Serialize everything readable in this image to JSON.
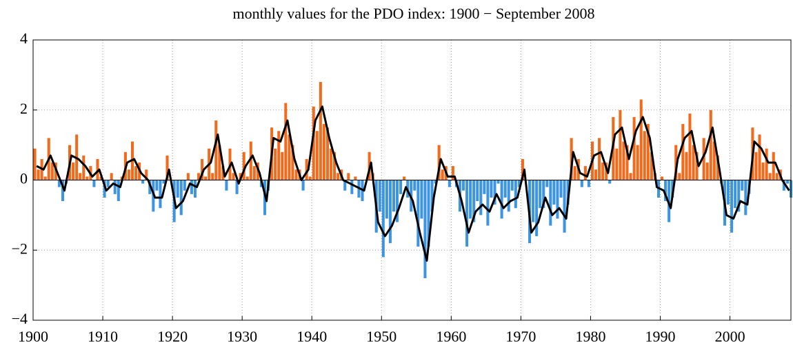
{
  "chart_data": {
    "type": "bar-line",
    "title": "monthly values for the PDO index: 1900 − September 2008",
    "xlim": [
      1900,
      2008.75
    ],
    "ylim": [
      -4,
      4
    ],
    "xticks": [
      1900,
      1910,
      1920,
      1930,
      1940,
      1950,
      1960,
      1970,
      1980,
      1990,
      2000
    ],
    "yticks": [
      {
        "value": -4,
        "label": "−4"
      },
      {
        "value": -2,
        "label": "−2"
      },
      0,
      2,
      4
    ],
    "grid": true,
    "series": [
      {
        "type": "bar",
        "color_positive": "#f26a1b",
        "color_negative": "#3d94e0",
        "x": [
          1900.25,
          1900.75,
          1901.25,
          1901.75,
          1902.25,
          1902.75,
          1903.25,
          1903.75,
          1904.25,
          1904.75,
          1905.25,
          1905.75,
          1906.25,
          1906.75,
          1907.25,
          1907.75,
          1908.25,
          1908.75,
          1909.25,
          1909.75,
          1910.25,
          1910.75,
          1911.25,
          1911.75,
          1912.25,
          1912.75,
          1913.25,
          1913.75,
          1914.25,
          1914.75,
          1915.25,
          1915.75,
          1916.25,
          1916.75,
          1917.25,
          1917.75,
          1918.25,
          1918.75,
          1919.25,
          1919.75,
          1920.25,
          1920.75,
          1921.25,
          1921.75,
          1922.25,
          1922.75,
          1923.25,
          1923.75,
          1924.25,
          1924.75,
          1925.25,
          1925.75,
          1926.25,
          1926.75,
          1927.25,
          1927.75,
          1928.25,
          1928.75,
          1929.25,
          1929.75,
          1930.25,
          1930.75,
          1931.25,
          1931.75,
          1932.25,
          1932.75,
          1933.25,
          1933.75,
          1934.25,
          1934.75,
          1935.25,
          1935.75,
          1936.25,
          1936.75,
          1937.25,
          1937.75,
          1938.25,
          1938.75,
          1939.25,
          1939.75,
          1940.25,
          1940.75,
          1941.25,
          1941.75,
          1942.25,
          1942.75,
          1943.25,
          1943.75,
          1944.25,
          1944.75,
          1945.25,
          1945.75,
          1946.25,
          1946.75,
          1947.25,
          1947.75,
          1948.25,
          1948.75,
          1949.25,
          1949.75,
          1950.25,
          1950.75,
          1951.25,
          1951.75,
          1952.25,
          1952.75,
          1953.25,
          1953.75,
          1954.25,
          1954.75,
          1955.25,
          1955.75,
          1956.25,
          1956.75,
          1957.25,
          1957.75,
          1958.25,
          1958.75,
          1959.25,
          1959.75,
          1960.25,
          1960.75,
          1961.25,
          1961.75,
          1962.25,
          1962.75,
          1963.25,
          1963.75,
          1964.25,
          1964.75,
          1965.25,
          1965.75,
          1966.25,
          1966.75,
          1967.25,
          1967.75,
          1968.25,
          1968.75,
          1969.25,
          1969.75,
          1970.25,
          1970.75,
          1971.25,
          1971.75,
          1972.25,
          1972.75,
          1973.25,
          1973.75,
          1974.25,
          1974.75,
          1975.25,
          1975.75,
          1976.25,
          1976.75,
          1977.25,
          1977.75,
          1978.25,
          1978.75,
          1979.25,
          1979.75,
          1980.25,
          1980.75,
          1981.25,
          1981.75,
          1982.25,
          1982.75,
          1983.25,
          1983.75,
          1984.25,
          1984.75,
          1985.25,
          1985.75,
          1986.25,
          1986.75,
          1987.25,
          1987.75,
          1988.25,
          1988.75,
          1989.25,
          1989.75,
          1990.25,
          1990.75,
          1991.25,
          1991.75,
          1992.25,
          1992.75,
          1993.25,
          1993.75,
          1994.25,
          1994.75,
          1995.25,
          1995.75,
          1996.25,
          1996.75,
          1997.25,
          1997.75,
          1998.25,
          1998.75,
          1999.25,
          1999.75,
          2000.25,
          2000.75,
          2001.25,
          2001.75,
          2002.25,
          2002.75,
          2003.25,
          2003.75,
          2004.25,
          2004.75,
          2005.25,
          2005.75,
          2006.25,
          2006.75,
          2007.25,
          2007.75,
          2008.25,
          2008.75
        ],
        "values": [
          0.9,
          0.3,
          0.6,
          0.1,
          1.2,
          0.5,
          0.5,
          -0.2,
          -0.6,
          -0.1,
          1.0,
          0.5,
          1.3,
          0.2,
          0.7,
          0.1,
          0.4,
          -0.2,
          0.6,
          0.1,
          -0.5,
          -0.2,
          0.2,
          -0.4,
          -0.6,
          0.1,
          0.8,
          0.3,
          1.1,
          0.4,
          0.5,
          -0.1,
          0.3,
          -0.4,
          -0.9,
          -0.3,
          -0.8,
          -0.1,
          0.7,
          0.0,
          -1.2,
          -0.5,
          -1.0,
          -0.3,
          0.2,
          -0.4,
          -0.5,
          0.2,
          0.6,
          0.1,
          0.9,
          0.2,
          1.7,
          1.0,
          0.4,
          -0.3,
          0.9,
          0.2,
          -0.4,
          0.2,
          0.8,
          0.1,
          1.1,
          0.4,
          0.5,
          -0.2,
          -1.0,
          -0.3,
          1.5,
          0.9,
          1.4,
          0.8,
          2.2,
          1.3,
          1.0,
          0.3,
          0.3,
          -0.3,
          0.6,
          0.1,
          2.1,
          1.4,
          2.8,
          1.6,
          1.5,
          0.9,
          0.8,
          0.2,
          0.3,
          -0.3,
          0.2,
          -0.4,
          0.1,
          -0.5,
          -0.6,
          0.0,
          0.8,
          0.2,
          -1.5,
          -0.9,
          -2.2,
          -1.1,
          -1.8,
          -0.9,
          -1.2,
          -0.4,
          0.1,
          -0.5,
          -0.9,
          -0.3,
          -1.9,
          -1.1,
          -2.8,
          -1.9,
          -0.9,
          -0.1,
          1.0,
          0.3,
          0.4,
          -0.2,
          0.4,
          -0.2,
          -0.9,
          -0.3,
          -1.9,
          -1.1,
          -1.2,
          -0.6,
          -1.0,
          -0.4,
          -1.3,
          -0.5,
          -0.7,
          -0.1,
          -1.1,
          -0.5,
          -0.9,
          -0.3,
          -0.8,
          -0.2,
          0.6,
          0.0,
          -1.8,
          -1.2,
          -1.6,
          -0.8,
          -0.8,
          -0.2,
          -1.3,
          -0.7,
          -1.1,
          -0.5,
          -1.5,
          -0.7,
          1.2,
          0.4,
          0.6,
          -0.2,
          0.4,
          -0.2,
          1.1,
          0.3,
          1.2,
          0.5,
          0.5,
          -0.1,
          1.8,
          0.9,
          2.0,
          1.1,
          1.0,
          0.2,
          1.8,
          1.0,
          2.3,
          1.4,
          1.6,
          0.8,
          0.2,
          -0.5,
          0.1,
          -0.6,
          -1.2,
          -0.5,
          1.0,
          0.2,
          1.6,
          0.8,
          1.9,
          1.0,
          0.8,
          0.0,
          1.2,
          0.5,
          2.0,
          1.1,
          0.7,
          -0.1,
          -1.3,
          -0.7,
          -1.5,
          -0.8,
          -0.9,
          -0.3,
          -1.0,
          -0.4,
          1.5,
          0.8,
          1.3,
          0.5,
          0.9,
          0.2,
          0.8,
          0.2,
          0.3,
          -0.3,
          -0.1,
          -0.5
        ]
      },
      {
        "type": "line",
        "color": "#000000",
        "x": [
          1900.5,
          1901.5,
          1902.5,
          1903.5,
          1904.5,
          1905.5,
          1906.5,
          1907.5,
          1908.5,
          1909.5,
          1910.5,
          1911.5,
          1912.5,
          1913.5,
          1914.5,
          1915.5,
          1916.5,
          1917.5,
          1918.5,
          1919.5,
          1920.5,
          1921.5,
          1922.5,
          1923.5,
          1924.5,
          1925.5,
          1926.5,
          1927.5,
          1928.5,
          1929.5,
          1930.5,
          1931.5,
          1932.5,
          1933.5,
          1934.5,
          1935.5,
          1936.5,
          1937.5,
          1938.5,
          1939.5,
          1940.5,
          1941.5,
          1942.5,
          1943.5,
          1944.5,
          1945.5,
          1946.5,
          1947.5,
          1948.5,
          1949.5,
          1950.5,
          1951.5,
          1952.5,
          1953.5,
          1954.5,
          1955.5,
          1956.5,
          1957.5,
          1958.5,
          1959.5,
          1960.5,
          1961.5,
          1962.5,
          1963.5,
          1964.5,
          1965.5,
          1966.5,
          1967.5,
          1968.5,
          1969.5,
          1970.5,
          1971.5,
          1972.5,
          1973.5,
          1974.5,
          1975.5,
          1976.5,
          1977.5,
          1978.5,
          1979.5,
          1980.5,
          1981.5,
          1982.5,
          1983.5,
          1984.5,
          1985.5,
          1986.5,
          1987.5,
          1988.5,
          1989.5,
          1990.5,
          1991.5,
          1992.5,
          1993.5,
          1994.5,
          1995.5,
          1996.5,
          1997.5,
          1998.5,
          1999.5,
          2000.5,
          2001.5,
          2002.5,
          2003.5,
          2004.5,
          2005.5,
          2006.5,
          2007.5,
          2008.5
        ],
        "values": [
          0.4,
          0.3,
          0.7,
          0.2,
          -0.3,
          0.7,
          0.6,
          0.4,
          0.1,
          0.3,
          -0.3,
          -0.1,
          -0.2,
          0.5,
          0.6,
          0.2,
          0.0,
          -0.5,
          -0.5,
          0.3,
          -0.8,
          -0.6,
          -0.1,
          -0.2,
          0.3,
          0.5,
          1.3,
          0.1,
          0.5,
          -0.1,
          0.4,
          0.7,
          0.2,
          -0.6,
          1.2,
          1.1,
          1.7,
          0.6,
          0.0,
          0.3,
          1.7,
          2.1,
          1.2,
          0.5,
          0.0,
          -0.1,
          -0.2,
          -0.3,
          0.5,
          -1.2,
          -1.6,
          -1.3,
          -0.8,
          -0.2,
          -0.6,
          -1.5,
          -2.3,
          -0.5,
          0.6,
          0.1,
          0.1,
          -0.6,
          -1.5,
          -0.9,
          -0.7,
          -0.9,
          -0.4,
          -0.8,
          -0.6,
          -0.5,
          0.3,
          -1.5,
          -1.2,
          -0.5,
          -1.0,
          -0.8,
          -1.1,
          0.8,
          0.2,
          0.1,
          0.7,
          0.8,
          0.2,
          1.3,
          1.5,
          0.6,
          1.4,
          1.8,
          1.2,
          -0.2,
          -0.3,
          -0.8,
          0.6,
          1.2,
          1.4,
          0.4,
          0.8,
          1.5,
          0.3,
          -1.0,
          -1.1,
          -0.6,
          -0.7,
          1.1,
          0.9,
          0.5,
          0.5,
          0.0,
          -0.3
        ]
      }
    ]
  }
}
